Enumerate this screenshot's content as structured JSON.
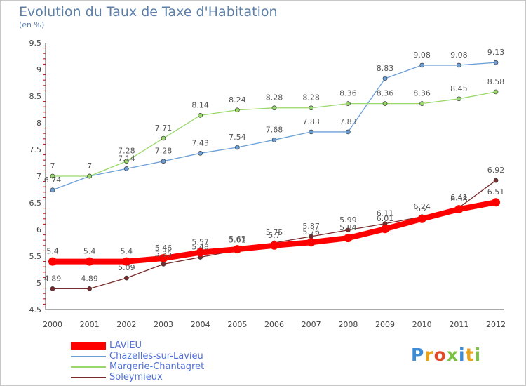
{
  "chart_data": {
    "type": "line",
    "title": "Evolution du Taux de Taxe d'Habitation",
    "unit_label": "(en %)",
    "x": [
      "2000",
      "2001",
      "2002",
      "2003",
      "2004",
      "2005",
      "2006",
      "2007",
      "2008",
      "2009",
      "2010",
      "2011",
      "2012"
    ],
    "ylim": [
      4.5,
      9.5
    ],
    "yticks": [
      "4.5",
      "5",
      "5.5",
      "6",
      "6.5",
      "7",
      "7.5",
      "8",
      "8.5",
      "9",
      "9.5"
    ],
    "grid": false,
    "legend_position": "bottom-left",
    "series": [
      {
        "name": "LAVIEU",
        "color": "#ff0000",
        "values": [
          5.4,
          5.4,
          5.4,
          5.46,
          5.57,
          5.63,
          5.7,
          5.76,
          5.84,
          6.01,
          6.2,
          6.38,
          6.51
        ],
        "labels": [
          "5.4",
          "5.4",
          "5.4",
          "5.46",
          "5.57",
          "5.63",
          "5.7",
          "5.76",
          "5.84",
          "6.01",
          "6.2",
          "6.38",
          "6.51"
        ]
      },
      {
        "name": "Chazelles-sur-Lavieu",
        "color": "#6a9fd8",
        "values": [
          6.74,
          7,
          7.14,
          7.28,
          7.43,
          7.54,
          7.68,
          7.83,
          7.83,
          8.83,
          9.08,
          9.08,
          9.13
        ],
        "labels": [
          "6.74",
          "7",
          "7.14",
          "7.28",
          "7.43",
          "7.54",
          "7.68",
          "7.83",
          "7.83",
          "8.83",
          "9.08",
          "9.08",
          "9.13"
        ]
      },
      {
        "name": "Margerie-Chantagret",
        "color": "#99d86a",
        "values": [
          7,
          7,
          7.28,
          7.71,
          8.14,
          8.24,
          8.28,
          8.28,
          8.36,
          8.36,
          8.36,
          8.45,
          8.58
        ],
        "labels": [
          "7",
          "7",
          "7.28",
          "7.71",
          "8.14",
          "8.24",
          "8.28",
          "8.28",
          "8.36",
          "8.36",
          "8.36",
          "8.45",
          "8.58"
        ]
      },
      {
        "name": "Soleymieux",
        "color": "#7a2b2b",
        "values": [
          4.89,
          4.89,
          5.09,
          5.35,
          5.48,
          5.61,
          5.75,
          5.87,
          5.99,
          6.11,
          6.24,
          6.41,
          6.92
        ],
        "labels": [
          "4.89",
          "4.89",
          "5.09",
          "5.35",
          "5.48",
          "5.61",
          "5.75",
          "5.87",
          "5.99",
          "6.11",
          "6.24",
          "6.41",
          "6.92"
        ]
      }
    ]
  },
  "branding": {
    "logo_text": "Proxiti"
  }
}
